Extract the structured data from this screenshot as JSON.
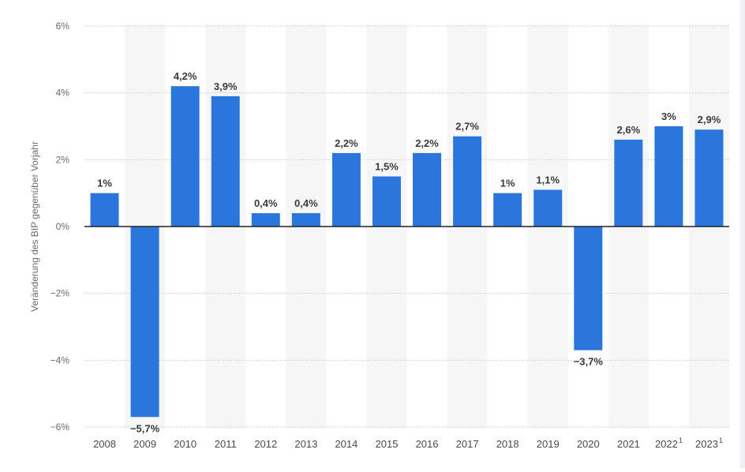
{
  "chart_data": {
    "type": "bar",
    "ylabel": "Veränderung des BIP gegenüber Vorjahr",
    "xlabel": "",
    "ylim": [
      -6,
      6
    ],
    "yticks": [
      6,
      4,
      2,
      0,
      -2,
      -4,
      -6
    ],
    "ytick_labels": [
      "6%",
      "4%",
      "2%",
      "0%",
      "−2%",
      "−4%",
      "−6%"
    ],
    "grid": true,
    "legend": "none",
    "bar_color": "#2a76dd",
    "categories": [
      "2008",
      "2009",
      "2010",
      "2011",
      "2012",
      "2013",
      "2014",
      "2015",
      "2016",
      "2017",
      "2018",
      "2019",
      "2020",
      "2021",
      "2022",
      "2023"
    ],
    "category_footnotes": [
      "",
      "",
      "",
      "",
      "",
      "",
      "",
      "",
      "",
      "",
      "",
      "",
      "",
      "",
      "1",
      "1"
    ],
    "values": [
      1.0,
      -5.7,
      4.2,
      3.9,
      0.4,
      0.4,
      2.2,
      1.5,
      2.2,
      2.7,
      1.0,
      1.1,
      -3.7,
      2.6,
      3.0,
      2.9
    ],
    "data_labels": [
      "1%",
      "−5,7%",
      "4,2%",
      "3,9%",
      "0,4%",
      "0,4%",
      "2,2%",
      "1,5%",
      "2,2%",
      "2,7%",
      "1%",
      "1,1%",
      "−3,7%",
      "2,6%",
      "3%",
      "2,9%"
    ]
  }
}
